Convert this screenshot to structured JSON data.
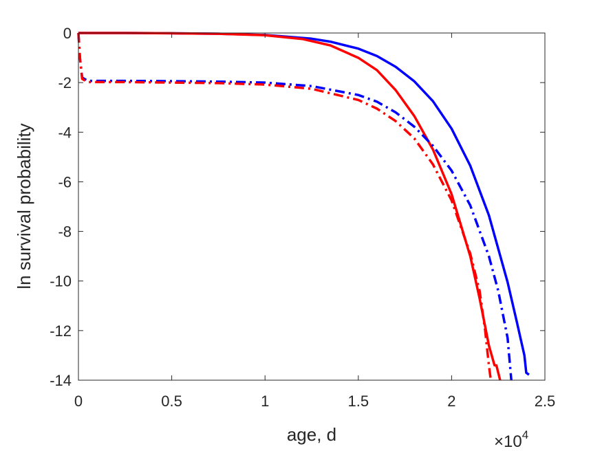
{
  "chart_data": {
    "type": "line",
    "title": "",
    "xlabel": "age, d",
    "ylabel": "ln survival probability",
    "x_multiplier": "×10",
    "x_multiplier_exp": "4",
    "xlim": [
      0,
      25000
    ],
    "ylim": [
      -14,
      0
    ],
    "xticks": [
      0,
      5000,
      10000,
      15000,
      20000,
      25000
    ],
    "xtick_labels": [
      "0",
      "0.5",
      "1",
      "1.5",
      "2",
      "2.5"
    ],
    "yticks": [
      0,
      -2,
      -4,
      -6,
      -8,
      -10,
      -12,
      -14
    ],
    "ytick_labels": [
      "0",
      "-2",
      "-4",
      "-6",
      "-8",
      "-10",
      "-12",
      "-14"
    ],
    "grid": false,
    "series": [
      {
        "color": "#0000ff",
        "style": "solid",
        "points": [
          [
            0,
            0
          ],
          [
            2500,
            0
          ],
          [
            5000,
            -0.01
          ],
          [
            7500,
            -0.03
          ],
          [
            10000,
            -0.08
          ],
          [
            12500,
            -0.23
          ],
          [
            13500,
            -0.35
          ],
          [
            15000,
            -0.63
          ],
          [
            16000,
            -0.93
          ],
          [
            17000,
            -1.36
          ],
          [
            18000,
            -1.95
          ],
          [
            19000,
            -2.75
          ],
          [
            20000,
            -3.86
          ],
          [
            21000,
            -5.35
          ],
          [
            22000,
            -7.35
          ],
          [
            23000,
            -10.05
          ],
          [
            23500,
            -11.66
          ],
          [
            23900,
            -13.0
          ],
          [
            24000,
            -13.7
          ],
          [
            24150,
            -13.78
          ]
        ]
      },
      {
        "color": "#ff0000",
        "style": "solid",
        "points": [
          [
            0,
            0
          ],
          [
            2500,
            0
          ],
          [
            5000,
            -0.01
          ],
          [
            7500,
            -0.03
          ],
          [
            10000,
            -0.09
          ],
          [
            12000,
            -0.24
          ],
          [
            13500,
            -0.5
          ],
          [
            15000,
            -1.0
          ],
          [
            16000,
            -1.5
          ],
          [
            17000,
            -2.3
          ],
          [
            18000,
            -3.35
          ],
          [
            19000,
            -4.7
          ],
          [
            20000,
            -6.5
          ],
          [
            21000,
            -9.0
          ],
          [
            21500,
            -10.7
          ],
          [
            22000,
            -12.6
          ],
          [
            22300,
            -13.4
          ],
          [
            22400,
            -13.4
          ],
          [
            22600,
            -14.0
          ]
        ]
      },
      {
        "color": "#0000ff",
        "style": "dashdot",
        "points": [
          [
            0,
            0
          ],
          [
            80,
            -1.0
          ],
          [
            200,
            -1.8
          ],
          [
            500,
            -1.93
          ],
          [
            2500,
            -1.93
          ],
          [
            5000,
            -1.94
          ],
          [
            7500,
            -1.96
          ],
          [
            10000,
            -2.0
          ],
          [
            12500,
            -2.14
          ],
          [
            15000,
            -2.5
          ],
          [
            16000,
            -2.77
          ],
          [
            17000,
            -3.2
          ],
          [
            18000,
            -3.78
          ],
          [
            19000,
            -4.55
          ],
          [
            20000,
            -5.55
          ],
          [
            21000,
            -6.95
          ],
          [
            22000,
            -9.0
          ],
          [
            22500,
            -10.4
          ],
          [
            23000,
            -12.3
          ],
          [
            23200,
            -14.0
          ]
        ]
      },
      {
        "color": "#ff0000",
        "style": "dashdot",
        "points": [
          [
            0,
            0
          ],
          [
            80,
            -1.0
          ],
          [
            200,
            -1.85
          ],
          [
            500,
            -1.98
          ],
          [
            2500,
            -1.98
          ],
          [
            5000,
            -2.0
          ],
          [
            7500,
            -2.02
          ],
          [
            10000,
            -2.08
          ],
          [
            12500,
            -2.25
          ],
          [
            15000,
            -2.7
          ],
          [
            16000,
            -3.05
          ],
          [
            17000,
            -3.55
          ],
          [
            18000,
            -4.25
          ],
          [
            19000,
            -5.3
          ],
          [
            20000,
            -6.75
          ],
          [
            21000,
            -8.9
          ],
          [
            21500,
            -10.4
          ],
          [
            21800,
            -12.0
          ],
          [
            22000,
            -13.4
          ],
          [
            22100,
            -14.0
          ]
        ]
      }
    ]
  }
}
